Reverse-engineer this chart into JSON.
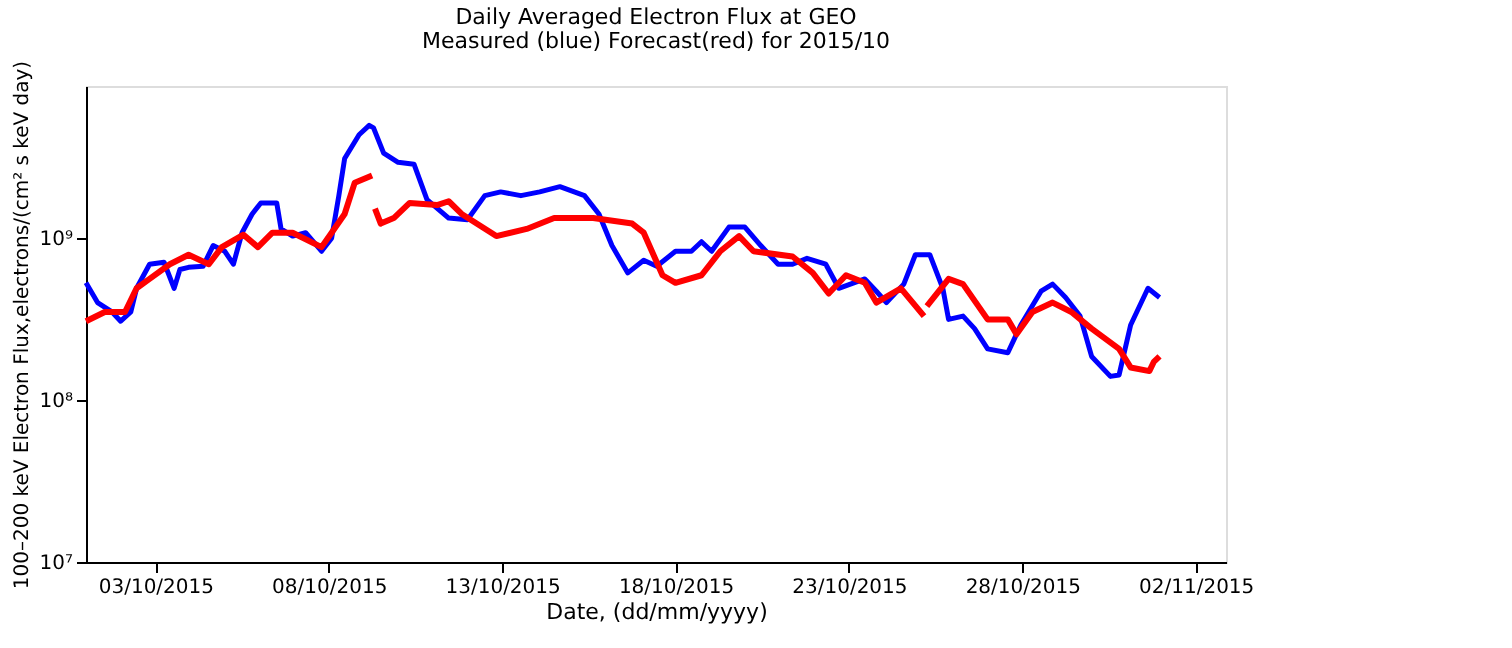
{
  "chart_data": {
    "type": "line",
    "title": "Daily Averaged Electron Flux at GEO",
    "subtitle": "Measured (blue) Forecast(red) for 2015/10",
    "xlabel": "Date, (dd/mm/yyyy)",
    "ylabel": "100–200 keV Electron Flux,electrons/(cm² s keV day)",
    "log": true,
    "grid": false,
    "marker": "none",
    "line_style": "solid",
    "xlim": [
      "2015-10-01",
      "2015-11-02T21:00"
    ],
    "xticks": [
      {
        "value": "2015-10-03",
        "label": "03/10/2015"
      },
      {
        "value": "2015-10-08",
        "label": "08/10/2015"
      },
      {
        "value": "2015-10-13",
        "label": "13/10/2015"
      },
      {
        "value": "2015-10-18",
        "label": "18/10/2015"
      },
      {
        "value": "2015-10-23",
        "label": "23/10/2015"
      },
      {
        "value": "2015-10-28",
        "label": "28/10/2015"
      },
      {
        "value": "2015-11-02",
        "label": "02/11/2015"
      }
    ],
    "ylim": [
      10000000,
      8700000000
    ],
    "yticks": [
      {
        "value": 10000000,
        "label": "10⁷"
      },
      {
        "value": 100000000,
        "label": "10⁸"
      },
      {
        "value": 1000000000,
        "label": "10⁹"
      }
    ],
    "series": [
      {
        "color": "#0000ff",
        "x": [
          "2015-10-01T00:00",
          "2015-10-01T08:00",
          "2015-10-01T18:00",
          "2015-10-02T00:00",
          "2015-10-02T07:00",
          "2015-10-02T11:00",
          "2015-10-02T20:00",
          "2015-10-03T06:00",
          "2015-10-03T13:00",
          "2015-10-03T17:00",
          "2015-10-03T23:00",
          "2015-10-04T09:00",
          "2015-10-04T16:00",
          "2015-10-05T00:00",
          "2015-10-05T06:00",
          "2015-10-05T12:00",
          "2015-10-05T19:00",
          "2015-10-06T01:00",
          "2015-10-06T12:00",
          "2015-10-06T15:00",
          "2015-10-06T23:00",
          "2015-10-07T08:00",
          "2015-10-07T19:00",
          "2015-10-08T02:00",
          "2015-10-08T07:00",
          "2015-10-08T11:00",
          "2015-10-08T21:00",
          "2015-10-09T04:00",
          "2015-10-09T07:00",
          "2015-10-09T14:00",
          "2015-10-10T00:00",
          "2015-10-10T11:00",
          "2015-10-10T20:00",
          "2015-10-11T11:00",
          "2015-10-12T00:00",
          "2015-10-12T12:00",
          "2015-10-12T23:00",
          "2015-10-13T13:00",
          "2015-10-14T02:00",
          "2015-10-14T16:00",
          "2015-10-15T09:00",
          "2015-10-15T19:00",
          "2015-10-16T04:00",
          "2015-10-16T15:00",
          "2015-10-17T02:00",
          "2015-10-17T11:00",
          "2015-10-18T00:00",
          "2015-10-18T11:00",
          "2015-10-18T18:00",
          "2015-10-19T01:00",
          "2015-10-19T13:00",
          "2015-10-20T00:00",
          "2015-10-20T11:00",
          "2015-10-20T23:00",
          "2015-10-21T09:00",
          "2015-10-21T19:00",
          "2015-10-22T08:00",
          "2015-10-22T17:00",
          "2015-10-23T11:00",
          "2015-10-23T19:00",
          "2015-10-24T02:00",
          "2015-10-24T14:00",
          "2015-10-24T22:00",
          "2015-10-25T08:00",
          "2015-10-25T17:00",
          "2015-10-25T21:00",
          "2015-10-26T07:00",
          "2015-10-26T15:00",
          "2015-10-27T00:00",
          "2015-10-27T14:00",
          "2015-10-27T23:00",
          "2015-10-28T13:00",
          "2015-10-28T21:00",
          "2015-10-29T06:00",
          "2015-10-29T16:00",
          "2015-10-30T00:00",
          "2015-10-30T13:00",
          "2015-10-30T19:00",
          "2015-10-31T03:00",
          "2015-10-31T15:00",
          "2015-10-31T23:00"
        ],
        "values": [
          530000000,
          400000000,
          350000000,
          307000000,
          350000000,
          490000000,
          690000000,
          710000000,
          490000000,
          640000000,
          660000000,
          670000000,
          900000000,
          830000000,
          690000000,
          1080000000,
          1410000000,
          1650000000,
          1650000000,
          1140000000,
          1030000000,
          1080000000,
          830000000,
          1000000000,
          1830000000,
          3100000000,
          4350000000,
          4970000000,
          4800000000,
          3350000000,
          2940000000,
          2860000000,
          1730000000,
          1330000000,
          1300000000,
          1830000000,
          1930000000,
          1830000000,
          1930000000,
          2080000000,
          1830000000,
          1410000000,
          900000000,
          610000000,
          730000000,
          670000000,
          830000000,
          830000000,
          950000000,
          830000000,
          1170000000,
          1170000000,
          900000000,
          690000000,
          690000000,
          750000000,
          690000000,
          490000000,
          560000000,
          470000000,
          400000000,
          520000000,
          790000000,
          790000000,
          490000000,
          315000000,
          330000000,
          276000000,
          207000000,
          196000000,
          291000000,
          470000000,
          520000000,
          430000000,
          330000000,
          186000000,
          140000000,
          143000000,
          291000000,
          490000000,
          430000000
        ]
      },
      {
        "color": "#ff0000",
        "x": [
          "2015-10-01T00:00",
          "2015-10-01T13:00",
          "2015-10-02T03:00",
          "2015-10-02T11:00",
          "2015-10-02T20:00",
          "2015-10-03T10:00",
          "2015-10-03T23:00",
          "2015-10-04T13:00",
          "2015-10-04T22:00",
          "2015-10-05T13:00",
          "2015-10-05T23:00",
          "2015-10-06T09:00",
          "2015-10-06T23:00",
          "2015-10-07T19:00",
          "2015-10-08T02:00",
          "2015-10-08T11:00",
          "2015-10-08T18:00",
          "2015-10-09T06:00",
          "2015-10-09T07:00",
          "2015-10-09T08:00",
          "2015-10-09T12:00",
          "2015-10-09T21:00",
          "2015-10-10T08:00",
          "2015-10-11T03:00",
          "2015-10-11T11:00",
          "2015-10-11T20:00",
          "2015-10-12T20:00",
          "2015-10-13T17:00",
          "2015-10-14T12:00",
          "2015-10-15T15:00",
          "2015-10-16T18:00",
          "2015-10-17T02:00",
          "2015-10-17T15:00",
          "2015-10-18T00:00",
          "2015-10-18T18:00",
          "2015-10-19T07:00",
          "2015-10-19T20:00",
          "2015-10-20T06:00",
          "2015-10-21T09:00",
          "2015-10-21T23:00",
          "2015-10-22T10:00",
          "2015-10-22T22:00",
          "2015-10-23T11:00",
          "2015-10-23T19:00",
          "2015-10-24T12:00",
          "2015-10-25T04:00",
          "2015-10-25T05:00",
          "2015-10-25T06:00",
          "2015-10-25T21:00",
          "2015-10-26T07:00",
          "2015-10-27T00:00",
          "2015-10-27T14:00",
          "2015-10-27T20:00",
          "2015-10-28T07:00",
          "2015-10-28T21:00",
          "2015-10-29T10:00",
          "2015-10-30T00:00",
          "2015-10-30T19:00",
          "2015-10-31T03:00",
          "2015-10-31T16:00",
          "2015-10-31T19:00",
          "2015-10-31T23:00"
        ],
        "values": [
          307000000,
          350000000,
          350000000,
          490000000,
          560000000,
          690000000,
          790000000,
          690000000,
          880000000,
          1050000000,
          880000000,
          1080000000,
          1080000000,
          880000000,
          1080000000,
          1410000000,
          2200000000,
          2440000000,
          null,
          1520000000,
          1230000000,
          1330000000,
          1650000000,
          1600000000,
          1690000000,
          1410000000,
          1030000000,
          1140000000,
          1330000000,
          1330000000,
          1230000000,
          1080000000,
          590000000,
          530000000,
          590000000,
          830000000,
          1030000000,
          830000000,
          770000000,
          610000000,
          455000000,
          590000000,
          530000000,
          400000000,
          490000000,
          330000000,
          null,
          380000000,
          560000000,
          520000000,
          315000000,
          315000000,
          255000000,
          350000000,
          400000000,
          350000000,
          276000000,
          207000000,
          159000000,
          151000000,
          172000000,
          186000000
        ]
      }
    ]
  }
}
